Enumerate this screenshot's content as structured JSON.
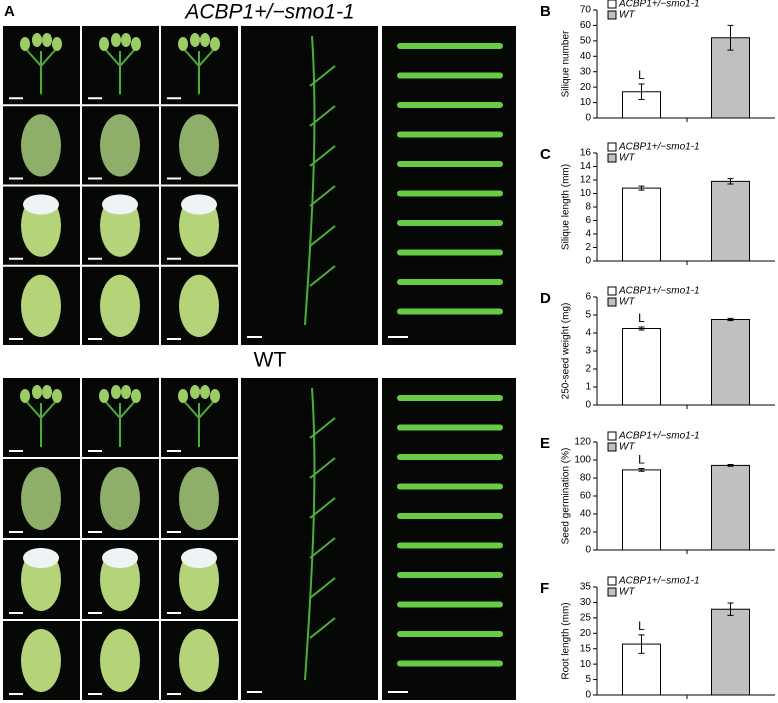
{
  "figure": {
    "panel_a": "A",
    "mutant_title": "ACBP1+/−smo1-1",
    "wt_title": "WT"
  },
  "chart_data": [
    {
      "type": "bar",
      "panel": "B",
      "ylabel": "Silique number",
      "annotation": "L",
      "ylim": [
        0,
        70
      ],
      "yticks": [
        0,
        10,
        20,
        30,
        40,
        50,
        60,
        70
      ],
      "series": [
        {
          "name": "ACBP1+/−smo1-1",
          "color": "#ffffff",
          "values": [
            17
          ],
          "errors": [
            5
          ]
        },
        {
          "name": "WT",
          "color": "#c0c0c0",
          "values": [
            52
          ],
          "errors": [
            8
          ]
        }
      ]
    },
    {
      "type": "bar",
      "panel": "C",
      "ylabel": "Silique length (mm)",
      "ylim": [
        0,
        16
      ],
      "yticks": [
        0,
        2,
        4,
        6,
        8,
        10,
        12,
        14,
        16
      ],
      "series": [
        {
          "name": "ACBP1+/−smo1-1",
          "color": "#ffffff",
          "values": [
            10.8
          ],
          "errors": [
            0.3
          ]
        },
        {
          "name": "WT",
          "color": "#c0c0c0",
          "values": [
            11.8
          ],
          "errors": [
            0.4
          ]
        }
      ]
    },
    {
      "type": "bar",
      "panel": "D",
      "ylabel": "250-seed weight (mg)",
      "annotation": "L",
      "ylim": [
        0,
        6
      ],
      "yticks": [
        0,
        1,
        2,
        3,
        4,
        5,
        6
      ],
      "series": [
        {
          "name": "ACBP1+/−smo1-1",
          "color": "#ffffff",
          "values": [
            4.25
          ],
          "errors": [
            0.08
          ]
        },
        {
          "name": "WT",
          "color": "#c0c0c0",
          "values": [
            4.75
          ],
          "errors": [
            0.06
          ]
        }
      ]
    },
    {
      "type": "bar",
      "panel": "E",
      "ylabel": "Seed germination (%)",
      "annotation": "L",
      "ylim": [
        0,
        120
      ],
      "yticks": [
        0,
        20,
        40,
        60,
        80,
        100,
        120
      ],
      "series": [
        {
          "name": "ACBP1+/−smo1-1",
          "color": "#ffffff",
          "values": [
            89
          ],
          "errors": [
            1.5
          ]
        },
        {
          "name": "WT",
          "color": "#c0c0c0",
          "values": [
            94
          ],
          "errors": [
            1
          ]
        }
      ]
    },
    {
      "type": "bar",
      "panel": "F",
      "ylabel": "Root length (mm)",
      "annotation": "L",
      "ylim": [
        0,
        35
      ],
      "yticks": [
        0,
        5,
        10,
        15,
        20,
        25,
        30,
        35
      ],
      "series": [
        {
          "name": "ACBP1+/−smo1-1",
          "color": "#ffffff",
          "values": [
            16.5
          ],
          "errors": [
            3
          ]
        },
        {
          "name": "WT",
          "color": "#c0c0c0",
          "values": [
            27.8
          ],
          "errors": [
            2
          ]
        }
      ]
    }
  ]
}
